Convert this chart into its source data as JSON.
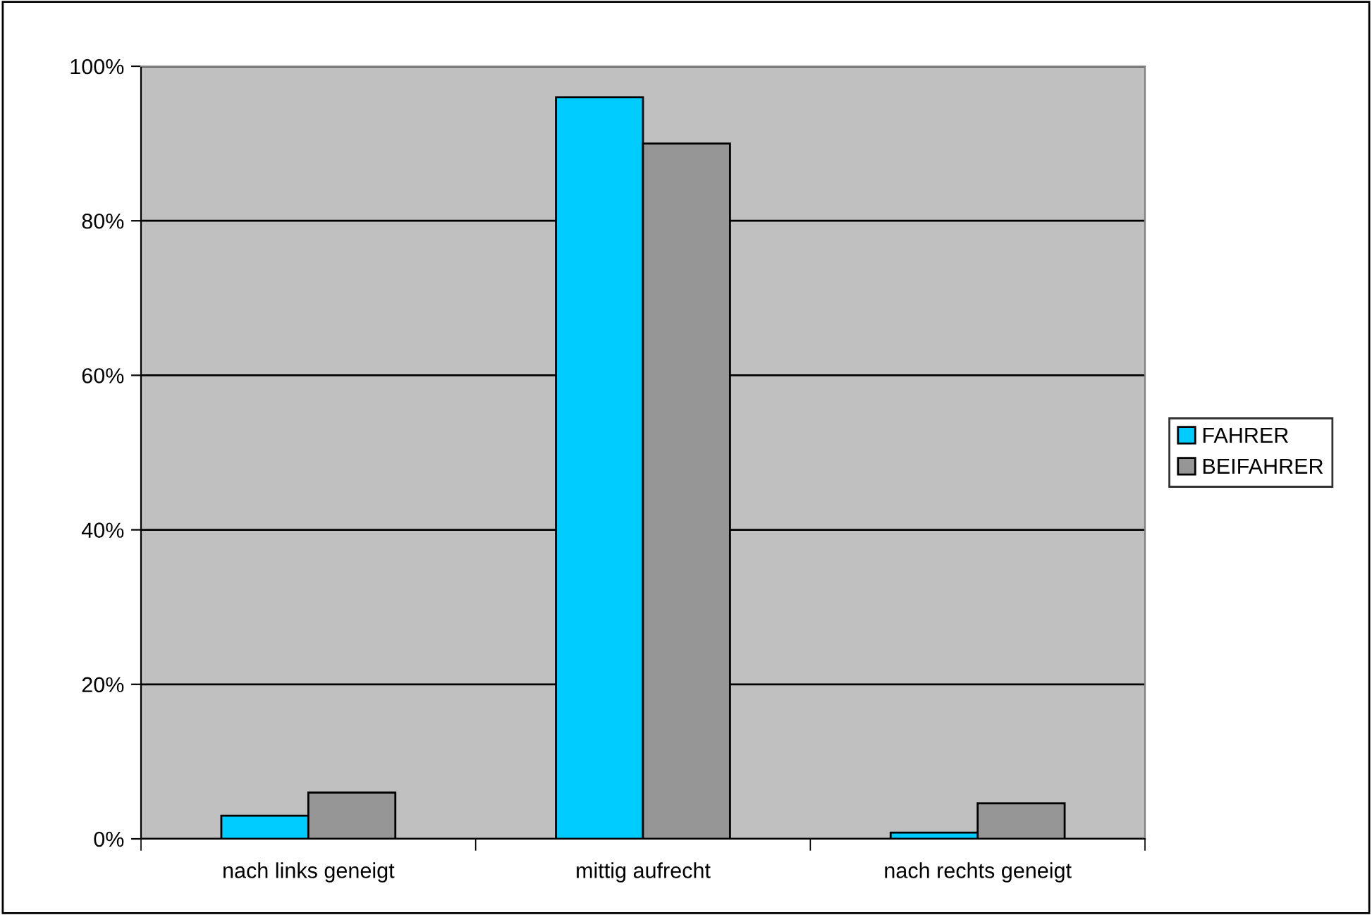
{
  "chart_data": {
    "type": "bar",
    "categories": [
      "nach links geneigt",
      "mittig aufrecht",
      "nach rechts geneigt"
    ],
    "series": [
      {
        "name": "FAHRER",
        "color": "#00ccff",
        "values": [
          3,
          96,
          0.8
        ]
      },
      {
        "name": "BEIFAHRER",
        "color": "#969696",
        "values": [
          6,
          90,
          4.6
        ]
      }
    ],
    "ylim": [
      0,
      100
    ],
    "yticks": [
      {
        "value": 0,
        "label": "0%"
      },
      {
        "value": 20,
        "label": "20%"
      },
      {
        "value": 40,
        "label": "40%"
      },
      {
        "value": 60,
        "label": "60%"
      },
      {
        "value": 80,
        "label": "80%"
      },
      {
        "value": 100,
        "label": "100%"
      }
    ],
    "grid": "y",
    "legend": "right"
  }
}
